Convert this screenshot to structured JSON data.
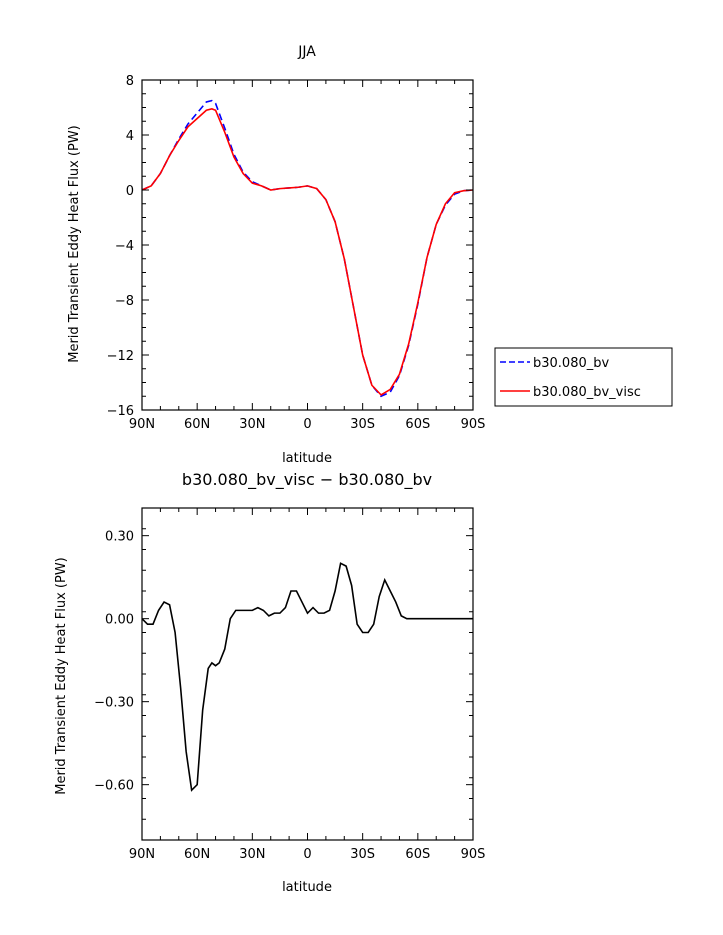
{
  "chart_data": [
    {
      "type": "line",
      "title": "JJA",
      "xlabel": "latitude",
      "ylabel": "Merid Transient Eddy Heat Flux (PW)",
      "xlim": [
        90,
        -90
      ],
      "ylim": [
        -16,
        8
      ],
      "x_ticks": [
        {
          "value": 90,
          "label": "90N"
        },
        {
          "value": 60,
          "label": "60N"
        },
        {
          "value": 30,
          "label": "30N"
        },
        {
          "value": 0,
          "label": "0"
        },
        {
          "value": -30,
          "label": "30S"
        },
        {
          "value": -60,
          "label": "60S"
        },
        {
          "value": -90,
          "label": "90S"
        }
      ],
      "y_ticks": [
        {
          "value": 8,
          "label": "8"
        },
        {
          "value": 4,
          "label": "4"
        },
        {
          "value": 0,
          "label": "0"
        },
        {
          "value": -4,
          "label": "−4"
        },
        {
          "value": -8,
          "label": "−8"
        },
        {
          "value": -12,
          "label": "−12"
        },
        {
          "value": -16,
          "label": "−16"
        }
      ],
      "legend_position": "right",
      "series": [
        {
          "name": "b30.080_bv",
          "color": "#0000ff",
          "dash": "dashed",
          "x": [
            90,
            85,
            80,
            75,
            70,
            65,
            60,
            55,
            52,
            50,
            45,
            40,
            35,
            30,
            25,
            20,
            15,
            10,
            5,
            0,
            -5,
            -10,
            -15,
            -20,
            -25,
            -30,
            -35,
            -40,
            -45,
            -50,
            -55,
            -60,
            -65,
            -70,
            -75,
            -80,
            -85,
            -90
          ],
          "values": [
            0,
            0.3,
            1.2,
            2.5,
            3.7,
            4.8,
            5.6,
            6.4,
            6.5,
            6.3,
            4.5,
            2.6,
            1.3,
            0.6,
            0.3,
            0.0,
            0.1,
            0.15,
            0.2,
            0.3,
            0.1,
            -0.7,
            -2.3,
            -5.0,
            -8.5,
            -12.0,
            -14.2,
            -15.0,
            -14.7,
            -13.5,
            -11.3,
            -8.3,
            -4.9,
            -2.5,
            -1.1,
            -0.3,
            -0.05,
            0
          ]
        },
        {
          "name": "b30.080_bv_visc",
          "color": "#ff0000",
          "dash": "solid",
          "x": [
            90,
            85,
            80,
            75,
            70,
            65,
            60,
            55,
            52,
            50,
            45,
            40,
            35,
            30,
            25,
            20,
            15,
            10,
            5,
            0,
            -5,
            -10,
            -15,
            -20,
            -25,
            -30,
            -35,
            -40,
            -45,
            -50,
            -55,
            -60,
            -65,
            -70,
            -75,
            -80,
            -85,
            -90
          ],
          "values": [
            0,
            0.3,
            1.2,
            2.5,
            3.6,
            4.6,
            5.2,
            5.8,
            5.9,
            5.8,
            4.2,
            2.4,
            1.2,
            0.5,
            0.3,
            0.0,
            0.1,
            0.15,
            0.2,
            0.3,
            0.1,
            -0.7,
            -2.3,
            -5.0,
            -8.5,
            -12.0,
            -14.2,
            -14.9,
            -14.5,
            -13.4,
            -11.2,
            -8.2,
            -4.9,
            -2.5,
            -1.0,
            -0.2,
            -0.05,
            0
          ]
        }
      ]
    },
    {
      "type": "line",
      "title": "b30.080_bv_visc − b30.080_bv",
      "xlabel": "latitude",
      "ylabel": "Merid Transient Eddy Heat Flux (PW)",
      "xlim": [
        90,
        -90
      ],
      "ylim": [
        -0.8,
        0.4
      ],
      "x_ticks": [
        {
          "value": 90,
          "label": "90N"
        },
        {
          "value": 60,
          "label": "60N"
        },
        {
          "value": 30,
          "label": "30N"
        },
        {
          "value": 0,
          "label": "0"
        },
        {
          "value": -30,
          "label": "30S"
        },
        {
          "value": -60,
          "label": "60S"
        },
        {
          "value": -90,
          "label": "90S"
        }
      ],
      "y_ticks": [
        {
          "value": 0.3,
          "label": "0.30"
        },
        {
          "value": 0.0,
          "label": "0.00"
        },
        {
          "value": -0.3,
          "label": "−0.30"
        },
        {
          "value": -0.6,
          "label": "−0.60"
        }
      ],
      "series": [
        {
          "color": "#000000",
          "dash": "solid",
          "x": [
            90,
            87,
            84,
            81,
            78,
            75,
            72,
            69,
            66,
            63,
            60,
            57,
            54,
            52,
            50,
            48,
            45,
            42,
            39,
            36,
            33,
            30,
            27,
            24,
            21,
            18,
            15,
            12,
            9,
            6,
            3,
            0,
            -3,
            -6,
            -9,
            -12,
            -15,
            -18,
            -21,
            -24,
            -27,
            -30,
            -33,
            -36,
            -39,
            -42,
            -45,
            -48,
            -51,
            -54,
            -57,
            -60,
            -63,
            -66,
            -69,
            -72,
            -75,
            -78,
            -81,
            -84,
            -87,
            -90
          ],
          "values": [
            0.0,
            -0.02,
            -0.02,
            0.03,
            0.06,
            0.05,
            -0.05,
            -0.25,
            -0.48,
            -0.62,
            -0.6,
            -0.33,
            -0.18,
            -0.16,
            -0.17,
            -0.16,
            -0.11,
            0.0,
            0.03,
            0.03,
            0.03,
            0.03,
            0.04,
            0.03,
            0.01,
            0.02,
            0.02,
            0.04,
            0.1,
            0.1,
            0.06,
            0.02,
            0.04,
            0.02,
            0.02,
            0.03,
            0.1,
            0.2,
            0.19,
            0.12,
            -0.02,
            -0.05,
            -0.05,
            -0.02,
            0.08,
            0.14,
            0.1,
            0.06,
            0.01,
            0.0,
            0.0,
            0.0,
            0.0,
            0.0,
            0.0,
            0.0,
            0.0,
            0.0,
            0.0,
            0.0,
            0.0,
            0.0
          ]
        }
      ]
    }
  ]
}
